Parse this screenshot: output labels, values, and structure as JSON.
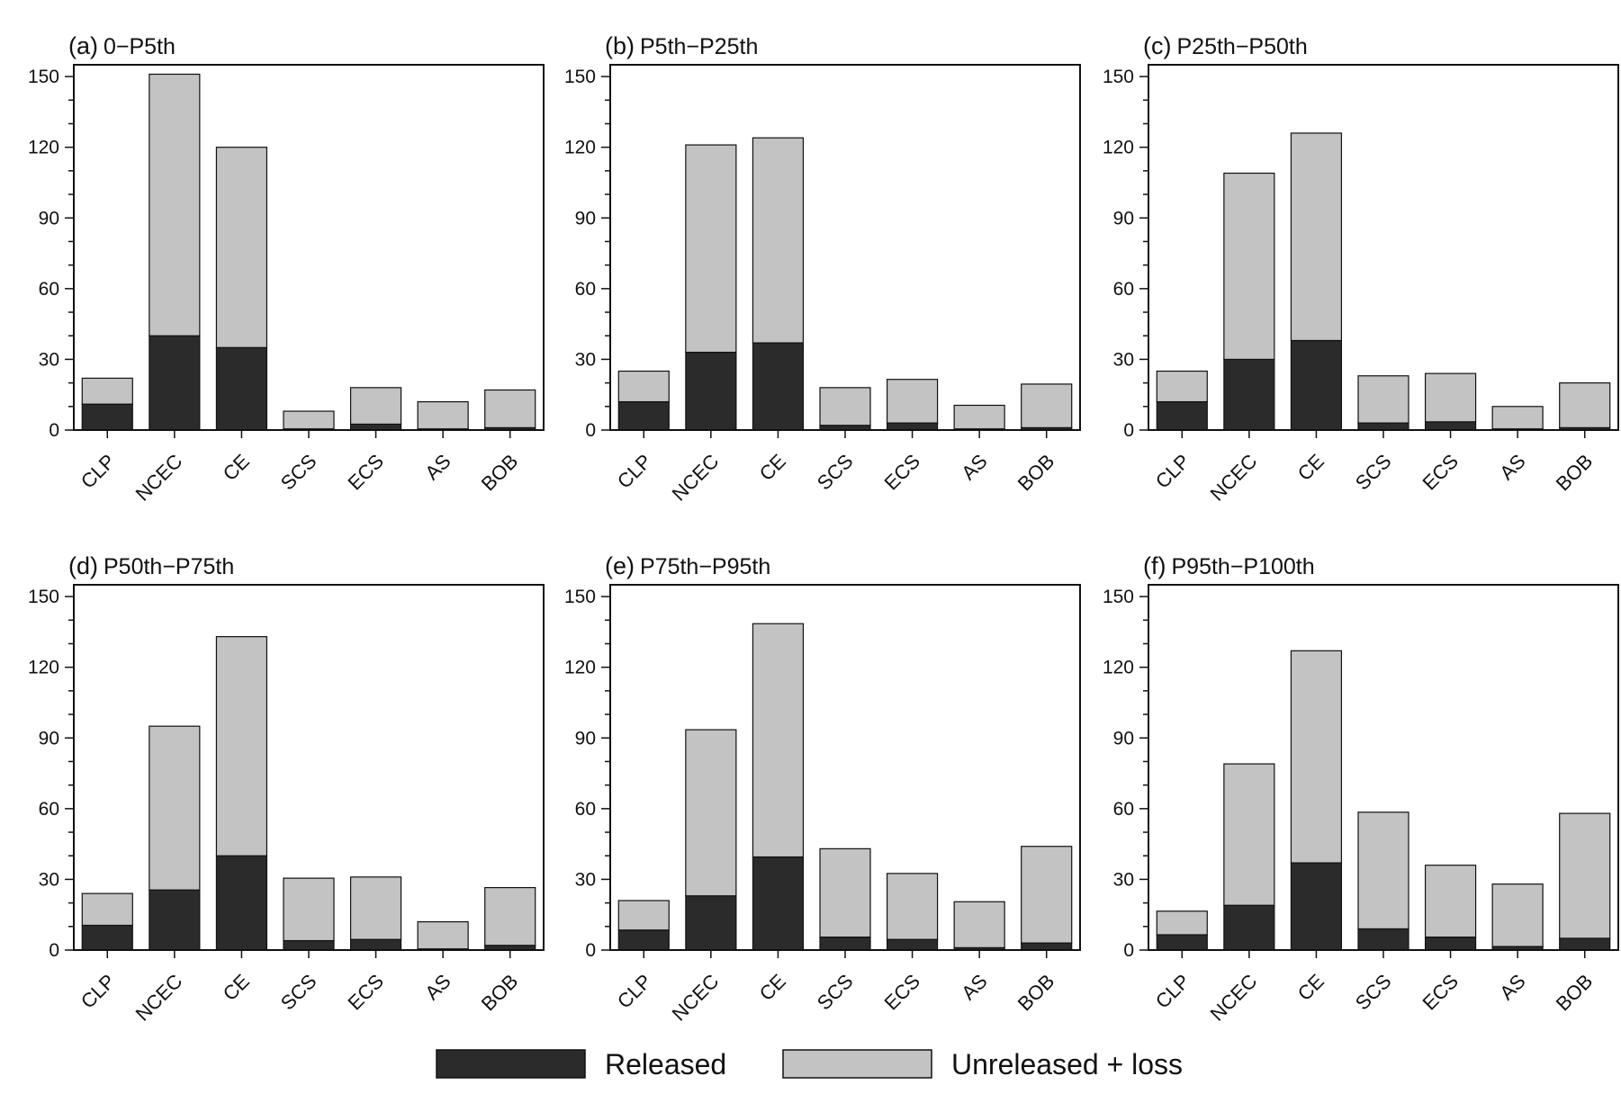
{
  "colors": {
    "released": "#2b2b2b",
    "unreleased": "#c3c3c3",
    "frame": "#111111"
  },
  "legend": {
    "released_label": "Released",
    "unreleased_label": "Unreleased + loss"
  },
  "chart_data": [
    {
      "type": "bar",
      "stacked": true,
      "panel": "(a)",
      "title": "0−P5th",
      "categories": [
        "CLP",
        "NCEC",
        "CE",
        "SCS",
        "ECS",
        "AS",
        "BOB"
      ],
      "series": [
        {
          "name": "Released",
          "values": [
            11,
            40,
            35,
            0.5,
            2.5,
            0.5,
            1
          ]
        },
        {
          "name": "Unreleased + loss",
          "values": [
            11,
            111,
            85,
            7.5,
            15.5,
            11.5,
            16
          ]
        }
      ],
      "yticks": [
        0,
        30,
        60,
        90,
        120,
        150
      ],
      "ylim": [
        0,
        155
      ]
    },
    {
      "type": "bar",
      "stacked": true,
      "panel": "(b)",
      "title": "P5th−P25th",
      "categories": [
        "CLP",
        "NCEC",
        "CE",
        "SCS",
        "ECS",
        "AS",
        "BOB"
      ],
      "series": [
        {
          "name": "Released",
          "values": [
            12,
            33,
            37,
            2,
            3,
            0.5,
            1
          ]
        },
        {
          "name": "Unreleased + loss",
          "values": [
            13,
            88,
            87,
            16,
            18.5,
            10,
            18.5
          ]
        }
      ],
      "yticks": [
        0,
        30,
        60,
        90,
        120,
        150
      ],
      "ylim": [
        0,
        155
      ]
    },
    {
      "type": "bar",
      "stacked": true,
      "panel": "(c)",
      "title": "P25th−P50th",
      "categories": [
        "CLP",
        "NCEC",
        "CE",
        "SCS",
        "ECS",
        "AS",
        "BOB"
      ],
      "series": [
        {
          "name": "Released",
          "values": [
            12,
            30,
            38,
            3,
            3.5,
            0.5,
            1
          ]
        },
        {
          "name": "Unreleased + loss",
          "values": [
            13,
            79,
            88,
            20,
            20.5,
            9.5,
            19
          ]
        }
      ],
      "yticks": [
        0,
        30,
        60,
        90,
        120,
        150
      ],
      "ylim": [
        0,
        155
      ]
    },
    {
      "type": "bar",
      "stacked": true,
      "panel": "(d)",
      "title": "P50th−P75th",
      "categories": [
        "CLP",
        "NCEC",
        "CE",
        "SCS",
        "ECS",
        "AS",
        "BOB"
      ],
      "series": [
        {
          "name": "Released",
          "values": [
            10.5,
            25.5,
            40,
            4,
            4.5,
            0.5,
            2
          ]
        },
        {
          "name": "Unreleased + loss",
          "values": [
            13.5,
            69.5,
            93,
            26.5,
            26.5,
            11.5,
            24.5
          ]
        }
      ],
      "yticks": [
        0,
        30,
        60,
        90,
        120,
        150
      ],
      "ylim": [
        0,
        155
      ]
    },
    {
      "type": "bar",
      "stacked": true,
      "panel": "(e)",
      "title": "P75th−P95th",
      "categories": [
        "CLP",
        "NCEC",
        "CE",
        "SCS",
        "ECS",
        "AS",
        "BOB"
      ],
      "series": [
        {
          "name": "Released",
          "values": [
            8.5,
            23,
            39.5,
            5.5,
            4.5,
            1,
            3
          ]
        },
        {
          "name": "Unreleased + loss",
          "values": [
            12.5,
            70.5,
            99,
            37.5,
            28,
            19.5,
            41
          ]
        }
      ],
      "yticks": [
        0,
        30,
        60,
        90,
        120,
        150
      ],
      "ylim": [
        0,
        155
      ]
    },
    {
      "type": "bar",
      "stacked": true,
      "panel": "(f)",
      "title": "P95th−P100th",
      "categories": [
        "CLP",
        "NCEC",
        "CE",
        "SCS",
        "ECS",
        "AS",
        "BOB"
      ],
      "series": [
        {
          "name": "Released",
          "values": [
            6.5,
            19,
            37,
            9,
            5.5,
            1.5,
            5
          ]
        },
        {
          "name": "Unreleased + loss",
          "values": [
            10,
            60,
            90,
            49.5,
            30.5,
            26.5,
            53
          ]
        }
      ],
      "yticks": [
        0,
        30,
        60,
        90,
        120,
        150
      ],
      "ylim": [
        0,
        155
      ]
    }
  ]
}
